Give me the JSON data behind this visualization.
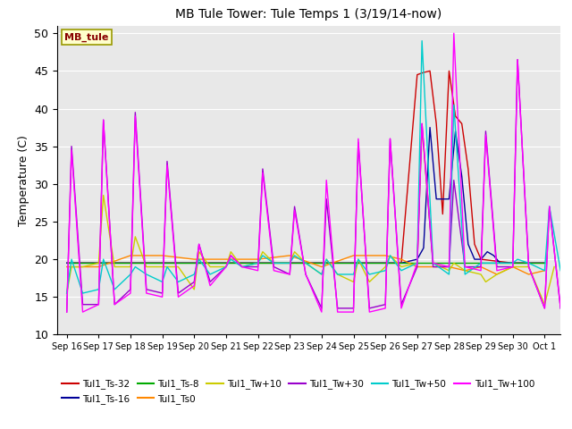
{
  "title": "MB Tule Tower: Tule Temps 1 (3/19/14-now)",
  "ylabel": "Temperature (C)",
  "ylim": [
    10,
    51
  ],
  "yticks": [
    10,
    15,
    20,
    25,
    30,
    35,
    40,
    45,
    50
  ],
  "bg_color": "#e8e8e8",
  "legend_label": "MB_tule",
  "colors": {
    "Tul1_Ts-32": "#cc0000",
    "Tul1_Ts-16": "#000099",
    "Tul1_Ts-8": "#00aa00",
    "Tul1_Ts0": "#ff8800",
    "Tul1_Tw+10": "#cccc00",
    "Tul1_Tw+30": "#9900cc",
    "Tul1_Tw+50": "#00cccc",
    "Tul1_Tw+100": "#ff00ff"
  },
  "series_order": [
    "Tul1_Ts-32",
    "Tul1_Ts-16",
    "Tul1_Ts-8",
    "Tul1_Ts0",
    "Tul1_Tw+10",
    "Tul1_Tw+30",
    "Tul1_Tw+50",
    "Tul1_Tw+100"
  ],
  "Tul1_Ts-32_x": [
    0,
    1,
    2,
    3,
    4,
    5,
    6,
    7,
    8,
    9,
    10,
    10.5,
    11,
    11.2,
    11.4,
    11.6,
    11.8,
    12,
    12.2,
    12.4,
    12.6,
    12.8,
    13,
    14,
    15
  ],
  "Tul1_Ts-32_y": [
    19.5,
    19.5,
    19.5,
    19.5,
    19.5,
    19.5,
    19.5,
    19.5,
    19.5,
    19.5,
    19.5,
    19.5,
    44.5,
    44.8,
    45.0,
    38.0,
    26.0,
    45.0,
    39.0,
    38.0,
    32.0,
    22.0,
    20.0,
    19.5,
    19.5
  ],
  "Tul1_Ts-16_x": [
    0,
    1,
    2,
    3,
    4,
    5,
    6,
    7,
    8,
    9,
    10,
    10.5,
    11,
    11.2,
    11.4,
    11.6,
    12,
    12.2,
    12.4,
    12.6,
    12.8,
    13,
    13.2,
    13.4,
    13.6,
    14,
    15
  ],
  "Tul1_Ts-16_y": [
    19.5,
    19.5,
    19.5,
    19.5,
    19.5,
    19.5,
    19.5,
    19.5,
    19.5,
    19.5,
    19.5,
    19.5,
    20.0,
    21.5,
    37.5,
    28.0,
    28.0,
    37.0,
    31.0,
    22.0,
    20.0,
    20.0,
    21.0,
    20.5,
    19.5,
    19.5,
    19.5
  ],
  "Tul1_Ts-8_x": [
    0,
    1,
    2,
    3,
    4,
    5,
    6,
    7,
    8,
    9,
    10,
    11,
    12,
    13,
    14,
    15
  ],
  "Tul1_Ts-8_y": [
    19.5,
    19.5,
    19.5,
    19.5,
    19.5,
    19.5,
    19.5,
    19.5,
    19.5,
    19.5,
    19.5,
    19.5,
    19.5,
    19.5,
    19.5,
    19.5
  ],
  "Tul1_Ts0_x": [
    0,
    1,
    2,
    3,
    4,
    5,
    6,
    7,
    8,
    9,
    10,
    10.5,
    11,
    11.5,
    12,
    12.5,
    13,
    13.5,
    14,
    14.5,
    15
  ],
  "Tul1_Ts0_y": [
    19.0,
    19.0,
    20.5,
    20.5,
    20.0,
    20.0,
    20.0,
    20.5,
    19.0,
    20.5,
    20.5,
    20.0,
    19.0,
    19.0,
    19.0,
    18.5,
    19.0,
    18.0,
    19.0,
    18.0,
    18.5
  ],
  "Tul1_Tw+10_x": [
    0,
    0.15,
    0.5,
    1,
    1.15,
    1.5,
    2,
    2.15,
    2.5,
    3,
    3.15,
    3.5,
    4,
    4.15,
    4.5,
    5,
    5.15,
    5.5,
    6,
    6.15,
    6.5,
    7,
    7.15,
    7.5,
    8,
    8.15,
    8.5,
    9,
    9.15,
    9.5,
    10,
    10.15,
    10.5,
    11,
    11.15,
    11.5,
    12,
    12.15,
    12.5,
    13,
    13.15,
    13.5,
    14,
    14.15,
    14.5,
    15,
    15.3
  ],
  "Tul1_Tw+10_y": [
    15.5,
    19.0,
    19.0,
    19.5,
    28.5,
    19.0,
    19.0,
    23.0,
    19.0,
    19.0,
    19.0,
    19.0,
    16.0,
    21.0,
    19.0,
    19.0,
    21.0,
    19.0,
    19.5,
    21.0,
    19.5,
    19.5,
    21.0,
    19.5,
    18.0,
    20.0,
    18.0,
    17.0,
    20.0,
    17.0,
    19.0,
    20.5,
    19.0,
    19.5,
    37.5,
    19.5,
    18.5,
    19.5,
    18.5,
    18.0,
    17.0,
    18.0,
    19.0,
    19.0,
    19.0,
    14.0,
    19.0
  ],
  "Tul1_Tw+30_x": [
    0,
    0.15,
    0.5,
    1,
    1.15,
    1.5,
    2,
    2.15,
    2.5,
    3,
    3.15,
    3.5,
    4,
    4.15,
    4.5,
    5,
    5.15,
    5.5,
    6,
    6.15,
    6.5,
    7,
    7.15,
    7.5,
    8,
    8.15,
    8.5,
    9,
    9.15,
    9.5,
    10,
    10.15,
    10.5,
    11,
    11.15,
    11.5,
    12,
    12.15,
    12.5,
    13,
    13.15,
    13.5,
    14,
    14.15,
    14.5,
    15,
    15.15,
    15.5
  ],
  "Tul1_Tw+30_y": [
    13.0,
    35.0,
    14.0,
    14.0,
    38.5,
    14.0,
    16.0,
    39.5,
    16.0,
    15.5,
    33.0,
    15.5,
    17.0,
    22.0,
    17.0,
    19.0,
    20.5,
    19.0,
    19.0,
    32.0,
    19.0,
    18.0,
    27.0,
    18.0,
    13.5,
    28.0,
    13.5,
    13.5,
    35.5,
    13.5,
    14.0,
    36.0,
    14.0,
    19.0,
    38.0,
    19.0,
    19.0,
    30.5,
    19.0,
    19.0,
    37.0,
    19.0,
    19.0,
    46.5,
    19.0,
    13.5,
    27.0,
    13.5
  ],
  "Tul1_Tw+50_x": [
    0,
    0.15,
    0.5,
    1,
    1.15,
    1.5,
    2,
    2.15,
    2.5,
    3,
    3.15,
    3.5,
    4,
    4.15,
    4.5,
    5,
    5.15,
    5.5,
    6,
    6.15,
    6.5,
    7,
    7.15,
    7.5,
    8,
    8.15,
    8.5,
    9,
    9.15,
    9.5,
    10,
    10.15,
    10.5,
    11,
    11.15,
    11.5,
    12,
    12.15,
    12.5,
    13,
    13.5,
    14,
    14.15,
    14.5,
    15,
    15.15,
    15.5
  ],
  "Tul1_Tw+50_y": [
    15.5,
    20.0,
    15.5,
    16.0,
    20.0,
    16.0,
    18.0,
    19.0,
    18.0,
    17.0,
    19.0,
    17.0,
    18.0,
    20.0,
    18.0,
    19.0,
    20.0,
    19.0,
    19.5,
    20.5,
    19.5,
    19.5,
    20.5,
    19.5,
    18.0,
    20.0,
    18.0,
    18.0,
    20.0,
    18.0,
    18.5,
    20.5,
    18.5,
    19.5,
    49.0,
    19.5,
    18.0,
    40.5,
    18.0,
    19.5,
    19.5,
    19.5,
    20.0,
    19.5,
    18.5,
    27.0,
    18.5
  ],
  "Tul1_Tw+100_x": [
    0,
    0.15,
    0.5,
    1,
    1.15,
    1.5,
    2,
    2.15,
    2.5,
    3,
    3.15,
    3.5,
    4,
    4.15,
    4.5,
    5,
    5.15,
    5.5,
    6,
    6.15,
    6.5,
    7,
    7.15,
    7.5,
    8,
    8.15,
    8.5,
    9,
    9.15,
    9.5,
    10,
    10.15,
    10.5,
    11,
    11.15,
    11.5,
    12,
    12.15,
    12.5,
    13,
    13.15,
    13.5,
    14,
    14.15,
    14.5,
    15,
    15.15,
    15.5
  ],
  "Tul1_Tw+100_y": [
    13.0,
    34.5,
    13.0,
    14.0,
    38.5,
    14.0,
    15.5,
    39.0,
    15.5,
    15.0,
    32.5,
    15.0,
    16.5,
    22.0,
    16.5,
    19.0,
    20.5,
    19.0,
    18.5,
    31.5,
    18.5,
    18.0,
    26.5,
    18.0,
    13.0,
    30.5,
    13.0,
    13.0,
    36.0,
    13.0,
    13.5,
    36.0,
    13.5,
    19.5,
    38.0,
    19.5,
    19.0,
    50.0,
    19.0,
    18.5,
    36.5,
    18.5,
    19.0,
    46.5,
    19.0,
    13.5,
    27.0,
    13.5
  ],
  "xtick_labels": [
    "Sep 16",
    "Sep 17",
    "Sep 18",
    "Sep 19",
    "Sep 20",
    "Sep 21",
    "Sep 22",
    "Sep 23",
    "Sep 24",
    "Sep 25",
    "Sep 26",
    "Sep 27",
    "Sep 28",
    "Sep 29",
    "Sep 30",
    "Oct 1"
  ],
  "xtick_positions": [
    0,
    1,
    2,
    3,
    4,
    5,
    6,
    7,
    8,
    9,
    10,
    11,
    12,
    13,
    14,
    15
  ]
}
